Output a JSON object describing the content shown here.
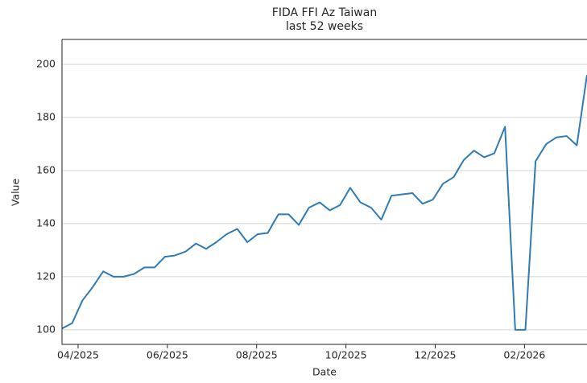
{
  "chart_data": {
    "type": "line",
    "title": "FIDA FFI Az Taiwan",
    "subtitle": "last 52 weeks",
    "x_label": "Date",
    "y_label": "Value",
    "x": [
      2025.22,
      2025.239,
      2025.258,
      2025.277,
      2025.297,
      2025.316,
      2025.335,
      2025.354,
      2025.374,
      2025.393,
      2025.412,
      2025.431,
      2025.451,
      2025.47,
      2025.489,
      2025.508,
      2025.527,
      2025.547,
      2025.566,
      2025.585,
      2025.604,
      2025.624,
      2025.643,
      2025.662,
      2025.681,
      2025.701,
      2025.72,
      2025.739,
      2025.758,
      2025.777,
      2025.797,
      2025.816,
      2025.835,
      2025.854,
      2025.874,
      2025.893,
      2025.912,
      2025.931,
      2025.951,
      2025.97,
      2025.989,
      2026.008,
      2026.027,
      2026.047,
      2026.066,
      2026.085,
      2026.104,
      2026.124,
      2026.143,
      2026.162,
      2026.181,
      2026.2
    ],
    "series": [
      {
        "color": "#2f7bb6",
        "values": [
          100.5,
          102.5,
          111,
          116,
          122,
          120,
          120,
          121,
          123.5,
          123.5,
          127.5,
          128,
          129.5,
          132.5,
          130.5,
          133,
          136,
          138,
          133,
          136,
          136.5,
          143.5,
          143.5,
          139.5,
          146,
          148,
          145,
          147,
          153.5,
          148,
          146,
          141.5,
          150.5,
          151,
          151.5,
          147.5,
          149,
          155,
          157.5,
          164,
          167.5,
          165,
          166.5,
          176.5,
          100,
          100,
          163.5,
          170,
          172.5,
          173,
          169.5,
          196
        ]
      }
    ],
    "xlim": [
      2025.22,
      2026.2
    ],
    "xticks": [
      {
        "value": 2025.25,
        "label": "04/2025"
      },
      {
        "value": 2025.4167,
        "label": "06/2025"
      },
      {
        "value": 2025.5833,
        "label": "08/2025"
      },
      {
        "value": 2025.75,
        "label": "10/2025"
      },
      {
        "value": 2025.9167,
        "label": "12/2025"
      },
      {
        "value": 2026.0833,
        "label": "02/2026"
      }
    ],
    "ylim": [
      94.5,
      209.4
    ],
    "yticks": [
      100,
      120,
      140,
      160,
      180,
      200
    ],
    "grid": true
  }
}
